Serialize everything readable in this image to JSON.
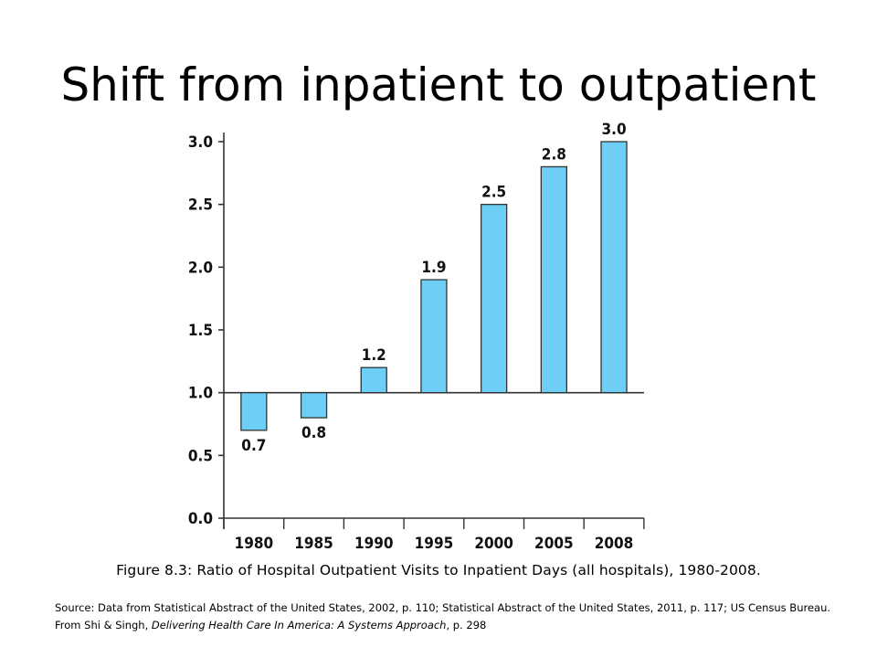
{
  "slide": {
    "title": "Shift from inpatient to outpatient",
    "caption": "Figure 8.3: Ratio of Hospital Outpatient Visits to Inpatient Days (all hospitals), 1980-2008.",
    "source": {
      "prefix": "Source: Data from Statistical Abstract of the United States, 2002, p. 110; Statistical Abstract of the United States, 2011, p. 117; US Census Bureau. From Shi & Singh, ",
      "book_title": "Delivering Health Care In America:  A Systems Approach",
      "suffix": ", p. 298"
    }
  },
  "colors": {
    "bar_fill": "#6ecff6",
    "bar_stroke": "#333333",
    "axis": "#333333"
  },
  "chart_data": {
    "type": "bar",
    "categories": [
      "1980",
      "1985",
      "1990",
      "1995",
      "2000",
      "2005",
      "2008"
    ],
    "values": [
      0.7,
      0.8,
      1.2,
      1.9,
      2.5,
      2.8,
      3.0
    ],
    "data_labels": [
      "0.7",
      "0.8",
      "1.2",
      "1.9",
      "2.5",
      "2.8",
      "3.0"
    ],
    "baseline": 1.0,
    "ylim": [
      0.0,
      3.0
    ],
    "yticks": [
      "0.0",
      "0.5",
      "1.0",
      "1.5",
      "2.0",
      "2.5",
      "3.0"
    ],
    "title": "",
    "xlabel": "",
    "ylabel": "",
    "grid": false,
    "legend": "none"
  }
}
